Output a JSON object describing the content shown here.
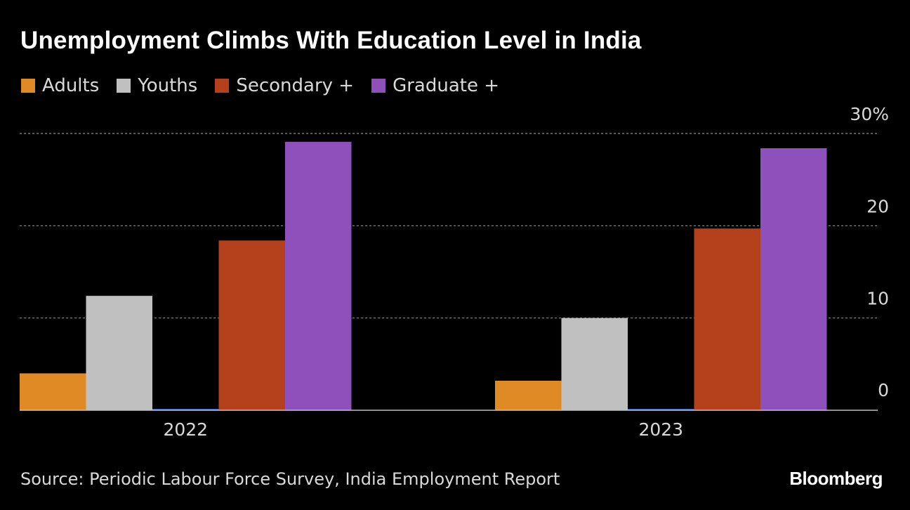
{
  "colors": {
    "background": "#000000",
    "text": "#ffffff",
    "muted_text": "#d9d9d9",
    "grid": "#8a8a8a",
    "axis": "#bfbfbf"
  },
  "chart_data": {
    "type": "bar",
    "title": "Unemployment Climbs With Education Level in India",
    "categories": [
      "2022",
      "2023"
    ],
    "series": [
      {
        "name": "Adults",
        "color": "#e08a26",
        "values": [
          4.0,
          3.2
        ]
      },
      {
        "name": "Youths",
        "color": "#c0c0c0",
        "values": [
          12.4,
          10.0
        ]
      },
      {
        "name": "Secondary +",
        "color": "#b5401c",
        "values": [
          18.4,
          19.7
        ]
      },
      {
        "name": "Graduate +",
        "color": "#8e51bb",
        "values": [
          29.1,
          28.4
        ]
      }
    ],
    "unseen_series_color": "#2f5fd0",
    "ylim": [
      0,
      30
    ],
    "yticks": [
      0,
      10,
      20,
      30
    ],
    "ytick_labels": [
      "0",
      "10",
      "20",
      "30%"
    ],
    "grid": true,
    "y_axis_side": "right",
    "legend_position": "top-left",
    "xlabel": "",
    "ylabel": ""
  },
  "source": "Source: Periodic Labour Force Survey, India Employment Report",
  "brand": "Bloomberg"
}
